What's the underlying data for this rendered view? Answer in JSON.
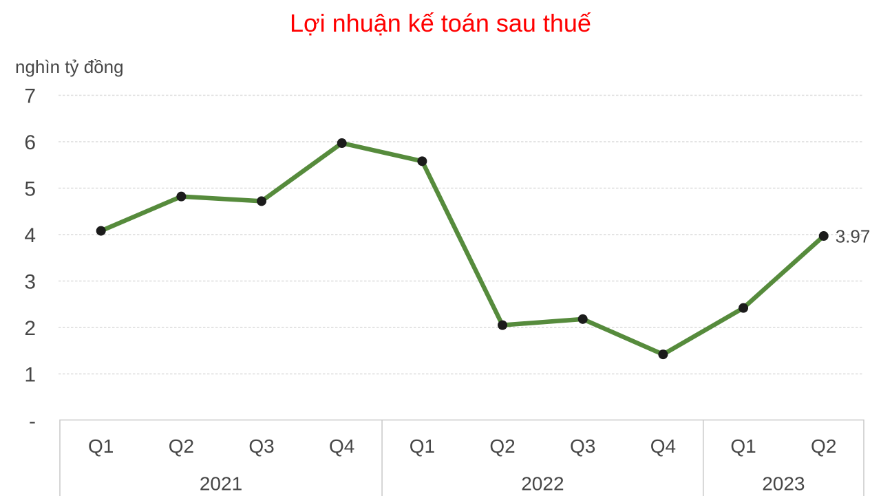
{
  "chart_data": {
    "type": "line",
    "title": "Lợi nhuận kế toán sau thuế",
    "unit_label": "nghìn tỷ đồng",
    "ylim": [
      0,
      7
    ],
    "y_ticks": [
      "7",
      "6",
      "5",
      "4",
      "3",
      "2",
      "1",
      "-"
    ],
    "grid": "horizontal-dashed",
    "legend": "none",
    "year_groups": [
      {
        "year": "2021",
        "quarters": [
          "Q1",
          "Q2",
          "Q3",
          "Q4"
        ]
      },
      {
        "year": "2022",
        "quarters": [
          "Q1",
          "Q2",
          "Q3",
          "Q4"
        ]
      },
      {
        "year": "2023",
        "quarters": [
          "Q1",
          "Q2"
        ]
      }
    ],
    "series": [
      {
        "name": "Lợi nhuận kế toán sau thuế",
        "values": [
          4.08,
          4.82,
          4.72,
          5.97,
          5.58,
          2.05,
          2.18,
          1.42,
          2.42,
          3.97
        ]
      }
    ],
    "point_label": {
      "index": 9,
      "text": "3.97"
    },
    "colors": {
      "title": "#ff0000",
      "line": "#568b3c",
      "point": "#1b1b1b",
      "axis_text": "#464646",
      "grid": "#dcdcdc",
      "border": "#c8c8c8"
    }
  }
}
